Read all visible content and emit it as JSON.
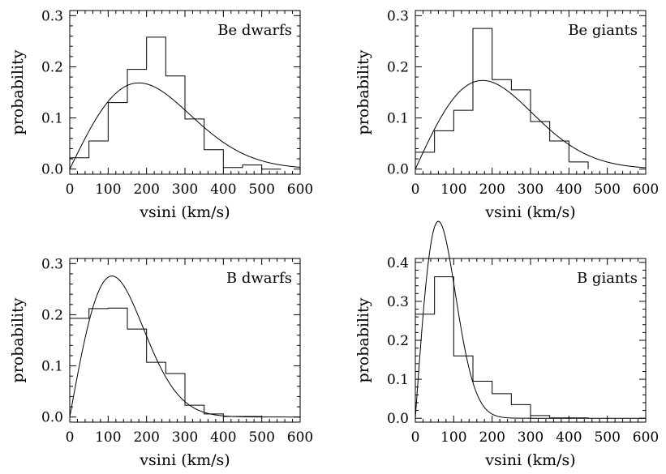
{
  "chart_data": [
    {
      "type": "histogram+line",
      "title": "Be dwarfs",
      "xlabel": "vsini (km/s)",
      "ylabel": "probability",
      "xlim": [
        0,
        600
      ],
      "ylim": [
        -0.01,
        0.31
      ],
      "xticks": [
        "0",
        "100",
        "200",
        "300",
        "400",
        "500",
        "600"
      ],
      "yticks": [
        "0.0",
        "0.1",
        "0.2",
        "0.3"
      ],
      "ytick_values": [
        0.0,
        0.1,
        0.2,
        0.3
      ],
      "bin_edges": [
        0,
        50,
        100,
        150,
        200,
        250,
        300,
        350,
        400,
        450,
        500,
        550
      ],
      "histogram": [
        0.022,
        0.055,
        0.13,
        0.195,
        0.258,
        0.182,
        0.098,
        0.038,
        0.003,
        0.008,
        0.0
      ],
      "curve_sigma": 180,
      "grid": false
    },
    {
      "type": "histogram+line",
      "title": "Be giants",
      "xlabel": "vsini (km/s)",
      "ylabel": "probability",
      "xlim": [
        0,
        600
      ],
      "ylim": [
        -0.01,
        0.31
      ],
      "xticks": [
        "0",
        "100",
        "200",
        "300",
        "400",
        "500",
        "600"
      ],
      "yticks": [
        "0.0",
        "0.1",
        "0.2",
        "0.3"
      ],
      "ytick_values": [
        0.0,
        0.1,
        0.2,
        0.3
      ],
      "bin_edges": [
        0,
        50,
        100,
        150,
        200,
        250,
        300,
        350,
        400,
        450
      ],
      "histogram": [
        0.033,
        0.075,
        0.115,
        0.275,
        0.175,
        0.155,
        0.093,
        0.055,
        0.014
      ],
      "curve_sigma": 175,
      "grid": false
    },
    {
      "type": "histogram+line",
      "title": "B dwarfs",
      "xlabel": "vsini (km/s)",
      "ylabel": "probability",
      "xlim": [
        0,
        600
      ],
      "ylim": [
        -0.01,
        0.31
      ],
      "xticks": [
        "0",
        "100",
        "200",
        "300",
        "400",
        "500",
        "600"
      ],
      "yticks": [
        "0.0",
        "0.1",
        "0.2",
        "0.3"
      ],
      "ytick_values": [
        0.0,
        0.1,
        0.2,
        0.3
      ],
      "bin_edges": [
        0,
        50,
        100,
        150,
        200,
        250,
        300,
        350,
        400,
        450,
        500
      ],
      "histogram": [
        0.193,
        0.212,
        0.213,
        0.172,
        0.107,
        0.085,
        0.023,
        0.006,
        0.001,
        0.001
      ],
      "curve_sigma": 110,
      "grid": false
    },
    {
      "type": "histogram+line",
      "title": "B giants",
      "xlabel": "vsini (km/s)",
      "ylabel": "probability",
      "xlim": [
        0,
        600
      ],
      "ylim": [
        -0.01,
        0.41
      ],
      "xticks": [
        "0",
        "100",
        "200",
        "300",
        "400",
        "500",
        "600"
      ],
      "yticks": [
        "0.0",
        "0.1",
        "0.2",
        "0.3",
        "0.4"
      ],
      "ytick_values": [
        0.0,
        0.1,
        0.2,
        0.3,
        0.4
      ],
      "bin_edges": [
        0,
        50,
        100,
        150,
        200,
        250,
        300,
        350,
        400,
        450
      ],
      "histogram": [
        0.267,
        0.363,
        0.16,
        0.095,
        0.063,
        0.035,
        0.007,
        0.001,
        0.001
      ],
      "curve_sigma": 60,
      "grid": false
    }
  ]
}
